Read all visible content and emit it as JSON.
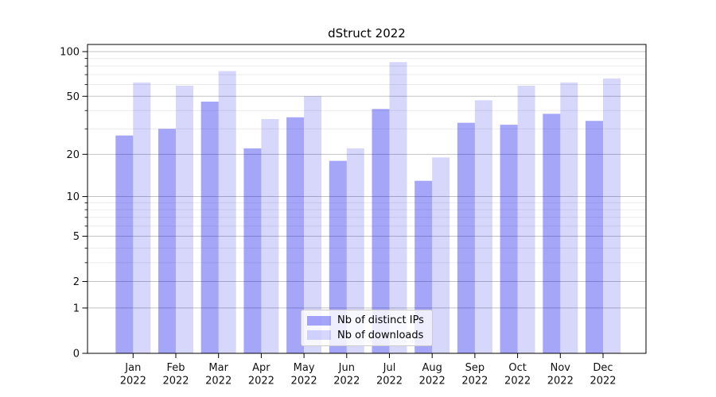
{
  "title": "dStruct 2022",
  "legend": {
    "items": [
      {
        "label": "Nb of distinct IPs",
        "swatch_color": "rgba(0,0,238,0.35)"
      },
      {
        "label": "Nb of downloads",
        "swatch_color": "rgba(0,0,238,0.155)"
      }
    ],
    "position": "lower center"
  },
  "chart_data": {
    "type": "bar",
    "title": "dStruct 2022",
    "categories": [
      "Jan",
      "Feb",
      "Mar",
      "Apr",
      "May",
      "Jun",
      "Jul",
      "Aug",
      "Sep",
      "Oct",
      "Nov",
      "Dec"
    ],
    "category_year": "2022",
    "series": [
      {
        "name": "Nb of distinct IPs",
        "color": "rgba(0,0,238,0.35)",
        "values": [
          27,
          30,
          46,
          22,
          36,
          18,
          41,
          13,
          33,
          32,
          38,
          34
        ]
      },
      {
        "name": "Nb of downloads",
        "color": "rgba(0,0,238,0.155)",
        "values": [
          62,
          59,
          74,
          35,
          50,
          22,
          85,
          19,
          47,
          59,
          62,
          66
        ]
      }
    ],
    "xlabel": "",
    "ylabel": "",
    "yscale": "log1p",
    "ylim": [
      0,
      112
    ],
    "yticks": [
      0,
      1,
      2,
      5,
      10,
      20,
      50,
      100
    ],
    "yticks_minor": [
      3,
      4,
      6,
      7,
      8,
      9,
      30,
      40,
      60,
      70,
      80,
      90
    ],
    "grid": true,
    "legend_position": "lower center",
    "colors": {
      "grid_major": "#c3c3c3",
      "grid_minor": "#ebebeb",
      "spine": "#000000",
      "tick_text": "#111111"
    }
  }
}
